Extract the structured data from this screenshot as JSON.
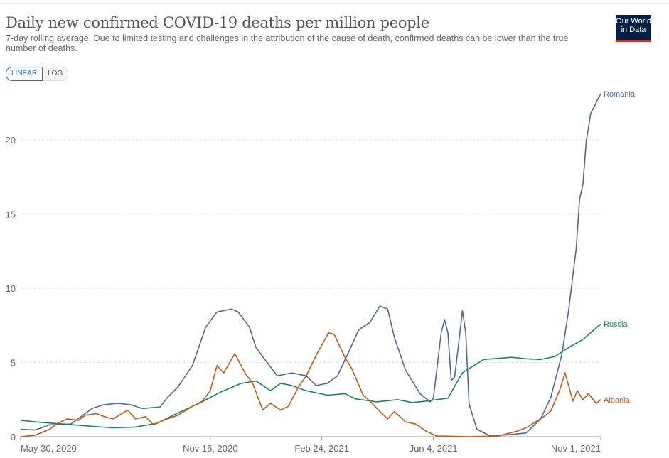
{
  "header": {
    "title": "Daily new confirmed COVID-19 deaths per million people",
    "subtitle": "7-day rolling average. Due to limited testing and challenges in the attribution of the cause of death, confirmed deaths can be lower than the true number of deaths.",
    "logo_text": "Our World in Data"
  },
  "controls": {
    "linear_label": "LINEAR",
    "log_label": "LOG",
    "selected": "LINEAR"
  },
  "chart_data": {
    "type": "line",
    "title": "Daily new confirmed COVID-19 deaths per million people",
    "xlim": [
      "2020-05-30",
      "2021-11-01"
    ],
    "ylim": [
      0,
      23.5
    ],
    "yticks": [
      0,
      5,
      10,
      15,
      20
    ],
    "xticks": [
      {
        "date": "2020-05-30",
        "label": "May 30, 2020"
      },
      {
        "date": "2020-11-16",
        "label": "Nov 16, 2020"
      },
      {
        "date": "2021-02-24",
        "label": "Feb 24, 2021"
      },
      {
        "date": "2021-06-04",
        "label": "Jun 4, 2021"
      },
      {
        "date": "2021-11-01",
        "label": "Nov 1, 2021"
      }
    ],
    "grid": "horizontal dashed",
    "legend": "line-end labels",
    "series": [
      {
        "name": "Romania",
        "color": "#4c6a9c",
        "points": [
          [
            "2020-05-30",
            0.5
          ],
          [
            "2020-06-12",
            0.45
          ],
          [
            "2020-06-25",
            0.8
          ],
          [
            "2020-07-14",
            0.85
          ],
          [
            "2020-08-02",
            1.9
          ],
          [
            "2020-08-12",
            2.15
          ],
          [
            "2020-08-25",
            2.25
          ],
          [
            "2020-09-06",
            2.15
          ],
          [
            "2020-09-16",
            1.9
          ],
          [
            "2020-10-02",
            2.0
          ],
          [
            "2020-10-08",
            2.6
          ],
          [
            "2020-10-18",
            3.35
          ],
          [
            "2020-10-31",
            4.8
          ],
          [
            "2020-11-12",
            7.4
          ],
          [
            "2020-11-22",
            8.4
          ],
          [
            "2020-12-05",
            8.6
          ],
          [
            "2020-12-11",
            8.4
          ],
          [
            "2020-12-21",
            7.4
          ],
          [
            "2020-12-27",
            6.0
          ],
          [
            "2021-01-06",
            5.0
          ],
          [
            "2021-01-15",
            4.1
          ],
          [
            "2021-01-28",
            4.3
          ],
          [
            "2021-02-10",
            4.1
          ],
          [
            "2021-02-19",
            3.45
          ],
          [
            "2021-03-01",
            3.6
          ],
          [
            "2021-03-10",
            4.1
          ],
          [
            "2021-03-20",
            5.7
          ],
          [
            "2021-03-29",
            7.2
          ],
          [
            "2021-04-08",
            7.7
          ],
          [
            "2021-04-17",
            8.8
          ],
          [
            "2021-04-24",
            8.6
          ],
          [
            "2021-04-30",
            6.7
          ],
          [
            "2021-05-10",
            4.5
          ],
          [
            "2021-05-23",
            2.9
          ],
          [
            "2021-06-01",
            2.35
          ],
          [
            "2021-06-04",
            2.6
          ],
          [
            "2021-06-11",
            7.0
          ],
          [
            "2021-06-14",
            7.9
          ],
          [
            "2021-06-17",
            7.0
          ],
          [
            "2021-06-20",
            3.8
          ],
          [
            "2021-06-23",
            4.0
          ],
          [
            "2021-06-27",
            6.5
          ],
          [
            "2021-06-30",
            8.5
          ],
          [
            "2021-07-03",
            7.0
          ],
          [
            "2021-07-06",
            2.2
          ],
          [
            "2021-07-13",
            0.5
          ],
          [
            "2021-07-25",
            0.05
          ],
          [
            "2021-08-13",
            0.15
          ],
          [
            "2021-08-26",
            0.25
          ],
          [
            "2021-09-08",
            1.2
          ],
          [
            "2021-09-17",
            2.6
          ],
          [
            "2021-09-27",
            5.5
          ],
          [
            "2021-10-03",
            8.4
          ],
          [
            "2021-10-10",
            12.7
          ],
          [
            "2021-10-13",
            16.0
          ],
          [
            "2021-10-16",
            17.0
          ],
          [
            "2021-10-19",
            19.9
          ],
          [
            "2021-10-23",
            21.8
          ],
          [
            "2021-10-26",
            22.2
          ],
          [
            "2021-10-29",
            22.7
          ],
          [
            "2021-11-01",
            23.1
          ]
        ]
      },
      {
        "name": "Russia",
        "color": "#18855b",
        "points": [
          [
            "2020-05-30",
            1.1
          ],
          [
            "2020-06-19",
            0.95
          ],
          [
            "2020-07-08",
            0.85
          ],
          [
            "2020-08-02",
            0.7
          ],
          [
            "2020-08-21",
            0.6
          ],
          [
            "2020-09-10",
            0.65
          ],
          [
            "2020-09-29",
            0.9
          ],
          [
            "2020-10-18",
            1.6
          ],
          [
            "2020-11-06",
            2.25
          ],
          [
            "2020-11-25",
            3.0
          ],
          [
            "2020-12-14",
            3.6
          ],
          [
            "2020-12-27",
            3.75
          ],
          [
            "2021-01-09",
            3.1
          ],
          [
            "2021-01-18",
            3.6
          ],
          [
            "2021-01-28",
            3.45
          ],
          [
            "2021-02-10",
            3.1
          ],
          [
            "2021-03-01",
            2.8
          ],
          [
            "2021-03-17",
            2.9
          ],
          [
            "2021-03-26",
            2.55
          ],
          [
            "2021-04-14",
            2.35
          ],
          [
            "2021-05-03",
            2.5
          ],
          [
            "2021-05-16",
            2.3
          ],
          [
            "2021-05-29",
            2.4
          ],
          [
            "2021-06-17",
            2.6
          ],
          [
            "2021-06-30",
            4.3
          ],
          [
            "2021-07-19",
            5.2
          ],
          [
            "2021-08-13",
            5.35
          ],
          [
            "2021-08-26",
            5.25
          ],
          [
            "2021-09-08",
            5.2
          ],
          [
            "2021-09-21",
            5.4
          ],
          [
            "2021-10-03",
            6.0
          ],
          [
            "2021-10-16",
            6.55
          ],
          [
            "2021-11-01",
            7.6
          ]
        ]
      },
      {
        "name": "Albania",
        "color": "#c15b19",
        "points": [
          [
            "2020-05-30",
            0
          ],
          [
            "2020-06-12",
            0.1
          ],
          [
            "2020-06-25",
            0.5
          ],
          [
            "2020-07-02",
            0.9
          ],
          [
            "2020-07-11",
            1.2
          ],
          [
            "2020-07-21",
            1.1
          ],
          [
            "2020-07-27",
            1.45
          ],
          [
            "2020-08-06",
            1.55
          ],
          [
            "2020-08-15",
            1.3
          ],
          [
            "2020-08-21",
            1.2
          ],
          [
            "2020-09-03",
            1.8
          ],
          [
            "2020-09-10",
            1.2
          ],
          [
            "2020-09-19",
            1.35
          ],
          [
            "2020-09-26",
            0.8
          ],
          [
            "2020-10-05",
            1.1
          ],
          [
            "2020-10-18",
            1.45
          ],
          [
            "2020-10-31",
            2.05
          ],
          [
            "2020-11-09",
            2.4
          ],
          [
            "2020-11-16",
            3.1
          ],
          [
            "2020-11-22",
            4.8
          ],
          [
            "2020-11-28",
            4.3
          ],
          [
            "2020-12-08",
            5.6
          ],
          [
            "2020-12-17",
            4.3
          ],
          [
            "2020-12-24",
            3.6
          ],
          [
            "2021-01-02",
            1.8
          ],
          [
            "2021-01-09",
            2.25
          ],
          [
            "2021-01-18",
            1.8
          ],
          [
            "2021-01-25",
            2.05
          ],
          [
            "2021-02-03",
            3.35
          ],
          [
            "2021-02-10",
            4.1
          ],
          [
            "2021-02-19",
            5.5
          ],
          [
            "2021-03-02",
            7.0
          ],
          [
            "2021-03-07",
            6.9
          ],
          [
            "2021-03-17",
            5.3
          ],
          [
            "2021-03-23",
            4.55
          ],
          [
            "2021-04-02",
            2.8
          ],
          [
            "2021-04-08",
            2.4
          ],
          [
            "2021-04-17",
            1.7
          ],
          [
            "2021-04-24",
            1.2
          ],
          [
            "2021-04-30",
            1.7
          ],
          [
            "2021-05-10",
            1.0
          ],
          [
            "2021-05-19",
            0.85
          ],
          [
            "2021-05-29",
            0.35
          ],
          [
            "2021-06-07",
            0.05
          ],
          [
            "2021-07-06",
            0
          ],
          [
            "2021-08-01",
            0.05
          ],
          [
            "2021-08-17",
            0.35
          ],
          [
            "2021-08-26",
            0.6
          ],
          [
            "2021-09-08",
            1.2
          ],
          [
            "2021-09-17",
            1.7
          ],
          [
            "2021-09-25",
            3.1
          ],
          [
            "2021-09-30",
            4.3
          ],
          [
            "2021-10-07",
            2.4
          ],
          [
            "2021-10-11",
            3.1
          ],
          [
            "2021-10-16",
            2.5
          ],
          [
            "2021-10-21",
            2.9
          ],
          [
            "2021-10-28",
            2.25
          ],
          [
            "2021-11-01",
            2.5
          ]
        ]
      }
    ]
  }
}
